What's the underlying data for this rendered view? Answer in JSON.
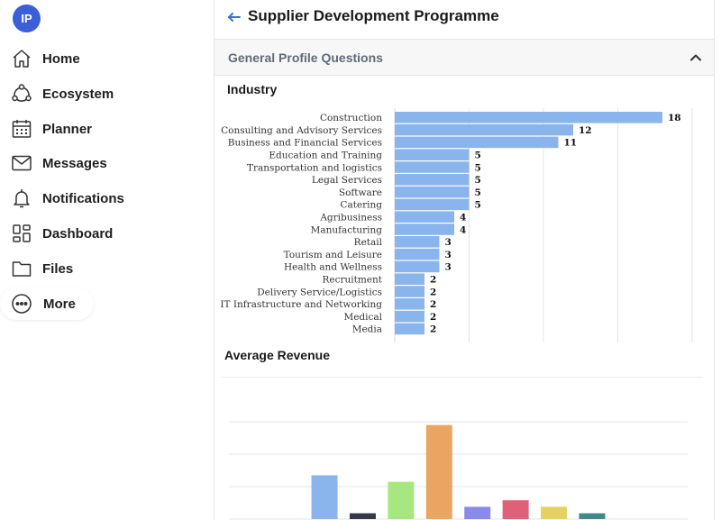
{
  "user": {
    "initials": "IP"
  },
  "sidebar": {
    "items": [
      {
        "label": "Home",
        "icon": "home-icon"
      },
      {
        "label": "Ecosystem",
        "icon": "ecosystem-icon"
      },
      {
        "label": "Planner",
        "icon": "calendar-icon"
      },
      {
        "label": "Messages",
        "icon": "mail-icon"
      },
      {
        "label": "Notifications",
        "icon": "bell-icon"
      },
      {
        "label": "Dashboard",
        "icon": "dashboard-icon"
      },
      {
        "label": "Files",
        "icon": "folder-icon"
      },
      {
        "label": "More",
        "icon": "more-icon"
      }
    ]
  },
  "header": {
    "title": "Supplier Development Programme"
  },
  "section": {
    "title": "General Profile Questions"
  },
  "industry": {
    "title": "Industry",
    "chart_data": {
      "type": "bar",
      "orientation": "horizontal",
      "categories": [
        "Construction",
        "Consulting and Advisory Services",
        "Business and Financial Services",
        "Education and Training",
        "Transportation and logistics",
        "Legal Services",
        "Software",
        "Catering",
        "Agribusiness",
        "Manufacturing",
        "Retail",
        "Tourism and Leisure",
        "Health and Wellness",
        "Recruitment",
        "Delivery Service/Logistics",
        "IT Infrastructure and Networking",
        "Medical",
        "Media"
      ],
      "values": [
        18,
        12,
        11,
        5,
        5,
        5,
        5,
        5,
        4,
        4,
        3,
        3,
        3,
        2,
        2,
        2,
        2,
        2
      ],
      "xlim": [
        0,
        20
      ],
      "grid": true,
      "bar_color": "#8ab4ec"
    }
  },
  "revenue": {
    "title": "Average Revenue",
    "chart_data": {
      "type": "bar",
      "values": [
        0,
        0,
        13.5,
        1.8,
        11.5,
        29,
        3.8,
        5.8,
        3.8,
        1.8,
        0,
        0
      ],
      "ylim": [
        0,
        30
      ],
      "grid": true,
      "colors": [
        "#8ab4ec",
        "#8ab4ec",
        "#8ab4ec",
        "#333a45",
        "#a6e87f",
        "#eba562",
        "#8a8ae8",
        "#e0607a",
        "#e6d060",
        "#3d8a86",
        "#8ab4ec",
        "#8ab4ec"
      ]
    }
  }
}
